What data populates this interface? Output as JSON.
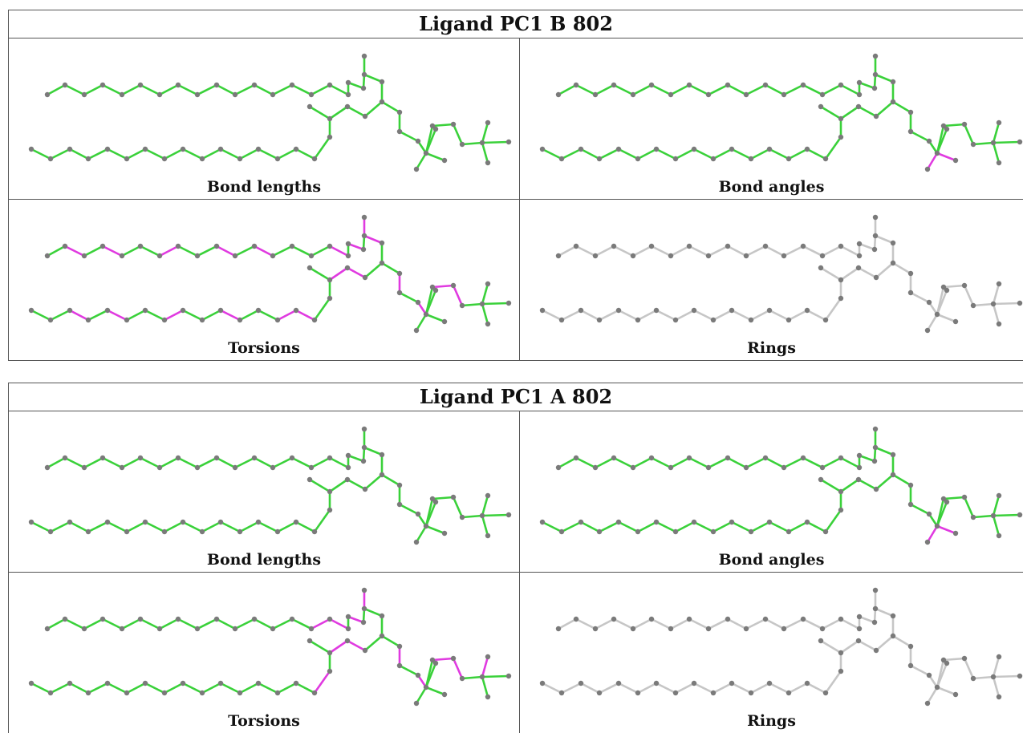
{
  "colors": {
    "ok": "#3ad13a",
    "outlier": "#e03ae0",
    "neutral": "#c6c6c6",
    "atom": "#7a7a7a"
  },
  "blocks": [
    {
      "title": "Ligand PC1 B 802",
      "panels": [
        {
          "caption": "Bond lengths",
          "outliers": []
        },
        {
          "caption": "Bond angles",
          "outliers": [
            "C1-C2",
            "C1-C3"
          ]
        },
        {
          "caption": "Torsions",
          "outliers": [
            "T1-T2",
            "T3-T4",
            "T6-T7",
            "T9-T10",
            "T11-T12",
            "T15-T16",
            "T17-T18",
            "B2-B3",
            "B4-B5",
            "B7-B8",
            "B10-B11",
            "B13-B14",
            "B14-B15",
            "K1-K2",
            "K2-K3",
            "J0-G",
            "J3-J4",
            "N1-N2",
            "N2-N3",
            "B16-B17",
            "J0-J1",
            "X",
            "C0-C1",
            "Q3-Q4"
          ]
        },
        {
          "caption": "Rings",
          "outliers": [],
          "neutral": true
        }
      ]
    },
    {
      "title": "Ligand PC1 A 802",
      "panels": [
        {
          "caption": "Bond lengths",
          "outliers": []
        },
        {
          "caption": "Bond angles",
          "outliers": [
            "C1-C2",
            "C1-C3"
          ]
        },
        {
          "caption": "Torsions",
          "outliers": [
            "T14-T15",
            "T15-T16",
            "T17-T18",
            "J0-G",
            "B15-B16",
            "K1-K2",
            "K2-K3",
            "J3-J4",
            "N1-N2",
            "N2-N3",
            "Q1-Q2",
            "C0-C1"
          ]
        },
        {
          "caption": "Rings",
          "outliers": [],
          "neutral": true
        }
      ]
    }
  ]
}
